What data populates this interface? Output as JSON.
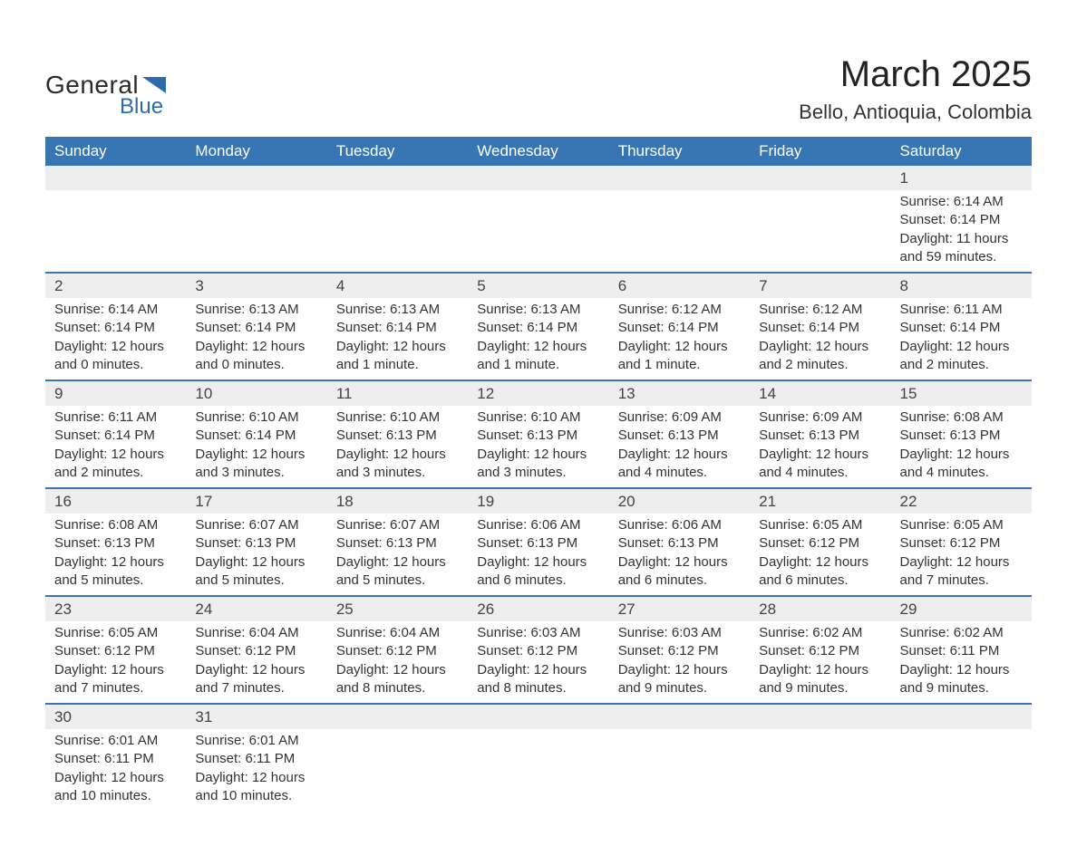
{
  "logo": {
    "general": "General",
    "blue": "Blue",
    "flag_color": "#2e6bad"
  },
  "header": {
    "month_title": "March 2025",
    "location": "Bello, Antioquia, Colombia"
  },
  "colors": {
    "header_bg": "#3875b3",
    "header_text": "#ffffff",
    "daynum_bg": "#eeeeee",
    "row_border": "#3875b3",
    "body_text": "#333333",
    "title_text": "#222222"
  },
  "fonts": {
    "title_size_pt": 30,
    "location_size_pt": 17,
    "header_size_pt": 13,
    "cell_size_pt": 11
  },
  "weekdays": [
    "Sunday",
    "Monday",
    "Tuesday",
    "Wednesday",
    "Thursday",
    "Friday",
    "Saturday"
  ],
  "calendar": {
    "month": "March",
    "year": 2025,
    "first_weekday_index": 6,
    "days_in_month": 31,
    "labels": {
      "sunrise": "Sunrise",
      "sunset": "Sunset",
      "daylight": "Daylight"
    },
    "days": {
      "1": {
        "sunrise": "6:14 AM",
        "sunset": "6:14 PM",
        "daylight": "11 hours and 59 minutes."
      },
      "2": {
        "sunrise": "6:14 AM",
        "sunset": "6:14 PM",
        "daylight": "12 hours and 0 minutes."
      },
      "3": {
        "sunrise": "6:13 AM",
        "sunset": "6:14 PM",
        "daylight": "12 hours and 0 minutes."
      },
      "4": {
        "sunrise": "6:13 AM",
        "sunset": "6:14 PM",
        "daylight": "12 hours and 1 minute."
      },
      "5": {
        "sunrise": "6:13 AM",
        "sunset": "6:14 PM",
        "daylight": "12 hours and 1 minute."
      },
      "6": {
        "sunrise": "6:12 AM",
        "sunset": "6:14 PM",
        "daylight": "12 hours and 1 minute."
      },
      "7": {
        "sunrise": "6:12 AM",
        "sunset": "6:14 PM",
        "daylight": "12 hours and 2 minutes."
      },
      "8": {
        "sunrise": "6:11 AM",
        "sunset": "6:14 PM",
        "daylight": "12 hours and 2 minutes."
      },
      "9": {
        "sunrise": "6:11 AM",
        "sunset": "6:14 PM",
        "daylight": "12 hours and 2 minutes."
      },
      "10": {
        "sunrise": "6:10 AM",
        "sunset": "6:14 PM",
        "daylight": "12 hours and 3 minutes."
      },
      "11": {
        "sunrise": "6:10 AM",
        "sunset": "6:13 PM",
        "daylight": "12 hours and 3 minutes."
      },
      "12": {
        "sunrise": "6:10 AM",
        "sunset": "6:13 PM",
        "daylight": "12 hours and 3 minutes."
      },
      "13": {
        "sunrise": "6:09 AM",
        "sunset": "6:13 PM",
        "daylight": "12 hours and 4 minutes."
      },
      "14": {
        "sunrise": "6:09 AM",
        "sunset": "6:13 PM",
        "daylight": "12 hours and 4 minutes."
      },
      "15": {
        "sunrise": "6:08 AM",
        "sunset": "6:13 PM",
        "daylight": "12 hours and 4 minutes."
      },
      "16": {
        "sunrise": "6:08 AM",
        "sunset": "6:13 PM",
        "daylight": "12 hours and 5 minutes."
      },
      "17": {
        "sunrise": "6:07 AM",
        "sunset": "6:13 PM",
        "daylight": "12 hours and 5 minutes."
      },
      "18": {
        "sunrise": "6:07 AM",
        "sunset": "6:13 PM",
        "daylight": "12 hours and 5 minutes."
      },
      "19": {
        "sunrise": "6:06 AM",
        "sunset": "6:13 PM",
        "daylight": "12 hours and 6 minutes."
      },
      "20": {
        "sunrise": "6:06 AM",
        "sunset": "6:13 PM",
        "daylight": "12 hours and 6 minutes."
      },
      "21": {
        "sunrise": "6:05 AM",
        "sunset": "6:12 PM",
        "daylight": "12 hours and 6 minutes."
      },
      "22": {
        "sunrise": "6:05 AM",
        "sunset": "6:12 PM",
        "daylight": "12 hours and 7 minutes."
      },
      "23": {
        "sunrise": "6:05 AM",
        "sunset": "6:12 PM",
        "daylight": "12 hours and 7 minutes."
      },
      "24": {
        "sunrise": "6:04 AM",
        "sunset": "6:12 PM",
        "daylight": "12 hours and 7 minutes."
      },
      "25": {
        "sunrise": "6:04 AM",
        "sunset": "6:12 PM",
        "daylight": "12 hours and 8 minutes."
      },
      "26": {
        "sunrise": "6:03 AM",
        "sunset": "6:12 PM",
        "daylight": "12 hours and 8 minutes."
      },
      "27": {
        "sunrise": "6:03 AM",
        "sunset": "6:12 PM",
        "daylight": "12 hours and 9 minutes."
      },
      "28": {
        "sunrise": "6:02 AM",
        "sunset": "6:12 PM",
        "daylight": "12 hours and 9 minutes."
      },
      "29": {
        "sunrise": "6:02 AM",
        "sunset": "6:11 PM",
        "daylight": "12 hours and 9 minutes."
      },
      "30": {
        "sunrise": "6:01 AM",
        "sunset": "6:11 PM",
        "daylight": "12 hours and 10 minutes."
      },
      "31": {
        "sunrise": "6:01 AM",
        "sunset": "6:11 PM",
        "daylight": "12 hours and 10 minutes."
      }
    }
  }
}
